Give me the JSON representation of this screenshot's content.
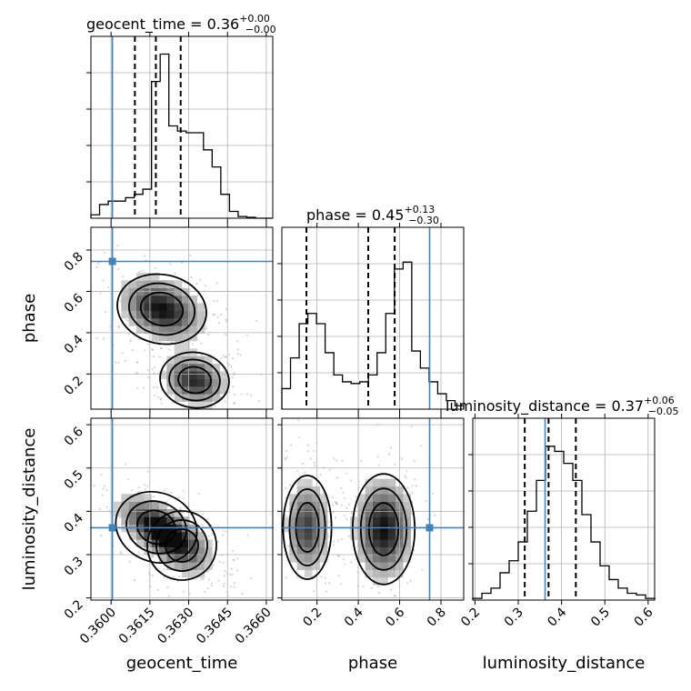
{
  "colors": {
    "truth": "#4682b4",
    "line": "#000000",
    "grid": "#b0b0b0",
    "density_dark": "#000000",
    "density_light": "#ffffff"
  },
  "chart_data": {
    "type": "corner",
    "parameters": [
      "geocent_time",
      "phase",
      "luminosity_distance"
    ],
    "ranges": {
      "geocent_time": [
        0.35922,
        0.36625
      ],
      "phase": [
        0.03,
        0.91
      ],
      "luminosity_distance": [
        0.195,
        0.615
      ]
    },
    "ticks": {
      "geocent_time": [
        0.36,
        0.3615,
        0.363,
        0.3645,
        0.366
      ],
      "phase": [
        0.2,
        0.4,
        0.6,
        0.8
      ],
      "luminosity_distance": [
        0.2,
        0.3,
        0.4,
        0.5,
        0.6
      ]
    },
    "tick_labels": {
      "geocent_time": [
        "0.3600",
        "0.3615",
        "0.3630",
        "0.3645",
        "0.3660"
      ],
      "phase": [
        "0.2",
        "0.4",
        "0.6",
        "0.8"
      ],
      "luminosity_distance": [
        "0.2",
        "0.3",
        "0.4",
        "0.5",
        "0.6"
      ]
    },
    "axis_labels": {
      "geocent_time": "geocent_time",
      "phase": "phase",
      "luminosity_distance": "luminosity_distance"
    },
    "truths": {
      "geocent_time": 0.36005,
      "phase": 0.745,
      "luminosity_distance": 0.362
    },
    "titles": [
      {
        "name": "geocent_time",
        "median": "0.36",
        "plus": "+0.00",
        "minus": "−0.00",
        "quantiles": [
          0.36092,
          0.36173,
          0.36269
        ]
      },
      {
        "name": "phase",
        "median": "0.45",
        "plus": "+0.13",
        "minus": "−0.30",
        "quantiles": [
          0.149,
          0.448,
          0.576
        ]
      },
      {
        "name": "luminosity_distance",
        "median": "0.37",
        "plus": "+0.06",
        "minus": "−0.05",
        "quantiles": [
          0.315,
          0.37,
          0.433
        ]
      }
    ],
    "histograms": {
      "geocent_time": [
        0.02,
        0.08,
        0.1,
        0.1,
        0.12,
        0.14,
        0.17,
        0.8,
        0.96,
        0.54,
        0.51,
        0.5,
        0.5,
        0.4,
        0.3,
        0.14,
        0.04,
        0.01,
        0.005,
        0,
        0
      ],
      "phase": [
        0.12,
        0.3,
        0.5,
        0.56,
        0.5,
        0.33,
        0.2,
        0.16,
        0.15,
        0.16,
        0.2,
        0.33,
        0.56,
        0.82,
        0.86,
        0.34,
        0.24,
        0.16,
        0.09,
        0.05,
        0.02
      ],
      "luminosity_distance": [
        0.01,
        0.04,
        0.07,
        0.16,
        0.23,
        0.34,
        0.52,
        0.7,
        0.9,
        0.87,
        0.8,
        0.7,
        0.5,
        0.34,
        0.2,
        0.12,
        0.07,
        0.04,
        0.03,
        0.01
      ]
    },
    "grid": true
  }
}
